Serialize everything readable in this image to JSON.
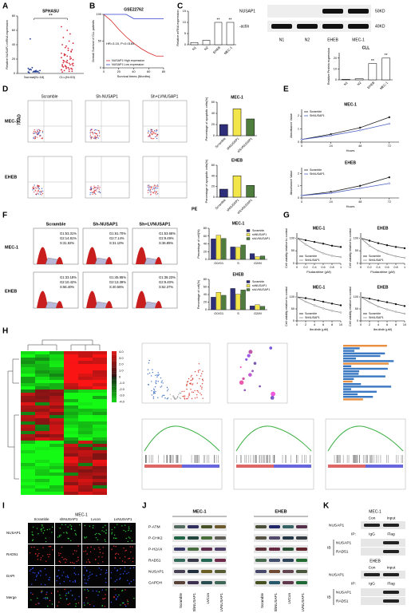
{
  "chart_data": [
    {
      "type": "strip",
      "title": "SPHASU",
      "ylabel": "Relative NUSAP1 mRNA expression",
      "categories": [
        "Normal(N=18)",
        "CLL(N=53)"
      ],
      "values": [
        [
          2,
          3,
          1,
          4,
          6,
          2,
          5,
          3,
          8,
          1,
          2,
          4,
          3,
          7,
          2,
          5,
          3,
          48
        ],
        [
          5,
          8,
          12,
          3,
          15,
          20,
          25,
          30,
          10,
          6,
          9,
          14,
          18,
          22,
          35,
          40,
          45,
          50,
          55,
          4,
          7,
          11,
          13,
          16,
          19,
          24,
          28,
          32,
          2,
          6,
          9,
          12,
          17,
          21,
          26,
          33,
          38,
          42,
          60,
          5,
          8,
          10,
          14,
          18,
          23,
          27,
          31,
          36,
          3,
          7,
          11,
          15,
          65
        ]
      ],
      "colors": [
        "#1f3a93",
        "#d62839"
      ],
      "ylim": [
        0,
        80
      ],
      "yticks": [
        0,
        20,
        40,
        60,
        80
      ],
      "annotation": "**"
    },
    {
      "type": "line",
      "title": "GSE22762",
      "ylabel": "Overall Survival of CLL patients",
      "xlabel": "Survival times (Months)",
      "x": [
        0,
        10,
        20,
        30,
        40,
        50,
        60,
        70,
        80
      ],
      "series": [
        {
          "name": "NUSAP1 High expression",
          "color": "#d62728",
          "values": [
            100,
            88,
            72,
            58,
            46,
            36,
            28,
            22,
            22
          ]
        },
        {
          "name": "NUSAP1 Low expression",
          "color": "#3344cc",
          "values": [
            100,
            100,
            100,
            100,
            92,
            92,
            92,
            92,
            92
          ]
        }
      ],
      "xlim": [
        0,
        80
      ],
      "xticks": [
        0,
        20,
        40,
        60,
        80
      ],
      "ylim": [
        0,
        100
      ],
      "yticks": [
        0,
        50,
        100
      ],
      "legend": "lower left",
      "annotation": "HR=3.15, P=0.0184"
    },
    {
      "type": "bar",
      "ylabel": "Relative mRNA expression",
      "categories": [
        "N1",
        "N2",
        "EHEB",
        "MEC-1"
      ],
      "values": [
        1,
        2,
        10,
        10
      ],
      "colors": [
        "#ffffff",
        "#ffffff",
        "#ffffff",
        "#ffffff"
      ],
      "ylim": [
        0,
        15
      ],
      "yticks": [
        0,
        5,
        10,
        15
      ],
      "significance": [
        null,
        null,
        "**",
        "**"
      ]
    },
    {
      "type": "bar",
      "title": "CLL",
      "ylabel": "Relative Protein expression",
      "categories": [
        "N1",
        "N2",
        "EHEB",
        "MEC-1"
      ],
      "values": [
        0.5,
        1,
        15,
        20
      ],
      "colors": [
        "#ffffff",
        "#ffffff",
        "#ffffff",
        "#ffffff"
      ],
      "ylim": [
        0,
        25
      ],
      "yticks": [
        0,
        10,
        20
      ],
      "significance": [
        null,
        null,
        "**",
        "**"
      ]
    },
    {
      "type": "bar",
      "title": "MEC-1",
      "ylabel": "Percentage of apoptotic cells(%)",
      "categories": [
        "Scramble",
        "shNUSAP1",
        "shLVNUSAP1"
      ],
      "values": [
        20,
        48,
        30
      ],
      "colors": [
        "#2e2e7a",
        "#f2e64a",
        "#4e7d3e"
      ],
      "ylim": [
        0,
        60
      ],
      "yticks": [
        0,
        20,
        40,
        60
      ]
    },
    {
      "type": "bar",
      "title": "EHEB",
      "ylabel": "Percentage of apoptotic cells(%)",
      "categories": [
        "Scramble",
        "shNUSAP1",
        "shLVNUSAP1"
      ],
      "values": [
        15,
        40,
        22
      ],
      "colors": [
        "#2e2e7a",
        "#f2e64a",
        "#4e7d3e"
      ],
      "ylim": [
        0,
        60
      ],
      "yticks": [
        0,
        20,
        40,
        60
      ]
    },
    {
      "type": "line",
      "title": "MEC-1",
      "ylabel": "Absorbance Value",
      "xlabel": "Hours",
      "x": [
        0,
        24,
        48,
        72
      ],
      "series": [
        {
          "name": "Scramble",
          "color": "#222222",
          "values": [
            0.2,
            0.6,
            1.1,
            1.9
          ]
        },
        {
          "name": "ShNUSAP1",
          "color": "#4a5fc1",
          "values": [
            0.2,
            0.5,
            0.9,
            1.4
          ]
        }
      ],
      "xlim": [
        0,
        80
      ],
      "xticks": [
        0,
        24,
        48,
        72
      ],
      "ylim": [
        0,
        2.5
      ],
      "yticks": [
        0,
        1,
        2
      ],
      "markers": true,
      "legend": "upper left"
    },
    {
      "type": "line",
      "title": "EHEB",
      "ylabel": "Absorbance Value",
      "xlabel": "Hours",
      "x": [
        0,
        24,
        48,
        72
      ],
      "series": [
        {
          "name": "Scramble",
          "color": "#222222",
          "values": [
            0.2,
            0.5,
            1.0,
            1.7
          ]
        },
        {
          "name": "ShNUSAP1",
          "color": "#4a5fc1",
          "values": [
            0.2,
            0.4,
            0.8,
            1.2
          ]
        }
      ],
      "xlim": [
        0,
        80
      ],
      "xticks": [
        0,
        24,
        48,
        72
      ],
      "ylim": [
        0,
        2.5
      ],
      "yticks": [
        0,
        1,
        2
      ],
      "markers": true,
      "legend": "upper left"
    },
    {
      "type": "bar",
      "title": "MEC-1",
      "ylabel": "Percentage of cell(%)",
      "categories": [
        "G0/G1",
        "S",
        "G2/M"
      ],
      "series": [
        {
          "name": "Scramble",
          "color": "#2e2e7a",
          "values": [
            53,
            32,
            15
          ]
        },
        {
          "name": "shNUSAP1",
          "color": "#f2e64a",
          "values": [
            62,
            31,
            7
          ]
        },
        {
          "name": "shLVNUSAP1",
          "color": "#4e7d3e",
          "values": [
            54,
            37,
            9
          ]
        }
      ],
      "ylim": [
        0,
        80
      ],
      "yticks": [
        0,
        20,
        40,
        60,
        80
      ],
      "legend": "upper right"
    },
    {
      "type": "bar",
      "title": "EHEB",
      "ylabel": "Percentage of cell(%)",
      "categories": [
        "G0/G1",
        "S",
        "G2/M"
      ],
      "series": [
        {
          "name": "Scramble",
          "color": "#2e2e7a",
          "values": [
            33,
            56,
            10
          ]
        },
        {
          "name": "shNUSAP1",
          "color": "#f2e64a",
          "values": [
            46,
            41,
            13
          ]
        },
        {
          "name": "shLVNUSAP1",
          "color": "#4e7d3e",
          "values": [
            38,
            52,
            9
          ]
        }
      ],
      "ylim": [
        0,
        80
      ],
      "yticks": [
        0,
        20,
        40,
        60,
        80
      ],
      "legend": "upper right"
    },
    {
      "type": "line",
      "title": "MEC-1",
      "ylabel": "Cell viability relative to control",
      "xlabel": "Fludarabine (μM)",
      "x": [
        0,
        0.2,
        0.4,
        0.6,
        0.8,
        1
      ],
      "series": [
        {
          "name": "Scramble",
          "color": "#111111",
          "values": [
            100,
            92,
            85,
            78,
            70,
            65
          ]
        },
        {
          "name": "ShNUSAP1",
          "color": "#888888",
          "values": [
            100,
            75,
            55,
            40,
            30,
            25
          ]
        }
      ],
      "xlim": [
        0,
        1
      ],
      "xticks": [
        0,
        0.2,
        0.4,
        0.6,
        0.8,
        1
      ],
      "ylim": [
        0,
        120
      ],
      "yticks": [
        0,
        50,
        100
      ],
      "markers": true,
      "legend": "lower left"
    },
    {
      "type": "line",
      "title": "EHEB",
      "ylabel": "Cell viability relative to control",
      "xlabel": "Fludarabine (μM)",
      "x": [
        0,
        0.2,
        0.4,
        0.6,
        0.8,
        1
      ],
      "series": [
        {
          "name": "Scramble",
          "color": "#111111",
          "values": [
            100,
            90,
            80,
            72,
            65,
            60
          ]
        },
        {
          "name": "ShNUSAP1",
          "color": "#888888",
          "values": [
            100,
            70,
            50,
            38,
            28,
            22
          ]
        }
      ],
      "xlim": [
        0,
        1
      ],
      "xticks": [
        0,
        0.2,
        0.4,
        0.6,
        0.8,
        1
      ],
      "ylim": [
        0,
        120
      ],
      "yticks": [
        0,
        50,
        100
      ],
      "markers": true,
      "legend": "lower left"
    },
    {
      "type": "line",
      "title": "MEC-1",
      "ylabel": "Cell viability relative to control",
      "xlabel": "Ibrutinib (μM)",
      "x": [
        0,
        2,
        4,
        6,
        8,
        10
      ],
      "series": [
        {
          "name": "Scramble",
          "color": "#111111",
          "values": [
            100,
            95,
            88,
            80,
            72,
            65
          ]
        },
        {
          "name": "ShNUSAP1",
          "color": "#888888",
          "values": [
            100,
            80,
            65,
            52,
            42,
            35
          ]
        }
      ],
      "xlim": [
        0,
        10
      ],
      "xticks": [
        0,
        2,
        4,
        6,
        8,
        10
      ],
      "ylim": [
        0,
        120
      ],
      "yticks": [
        0,
        50,
        100
      ],
      "markers": true,
      "legend": "lower left"
    },
    {
      "type": "line",
      "title": "EHEB",
      "ylabel": "Cell viability relative to control",
      "xlabel": "Ibrutinib (μM)",
      "x": [
        0,
        2,
        4,
        6,
        8,
        10
      ],
      "series": [
        {
          "name": "Scramble",
          "color": "#111111",
          "values": [
            100,
            93,
            85,
            78,
            70,
            62
          ]
        },
        {
          "name": "ShNUSAP1",
          "color": "#888888",
          "values": [
            100,
            78,
            60,
            48,
            38,
            30
          ]
        }
      ],
      "xlim": [
        0,
        10
      ],
      "xticks": [
        0,
        2,
        4,
        6,
        8,
        10
      ],
      "ylim": [
        0,
        120
      ],
      "yticks": [
        0,
        50,
        100
      ],
      "markers": true,
      "legend": "lower left"
    }
  ],
  "figure": {
    "panels": [
      "A",
      "B",
      "C",
      "D",
      "E",
      "F",
      "G",
      "H",
      "I",
      "J",
      "K"
    ],
    "c_blot": {
      "proteins": [
        "NUSAP1",
        "-actin"
      ],
      "sizes": [
        "50KD",
        "40KD"
      ],
      "lanes": [
        "N1",
        "N2",
        "EHEB",
        "MEC-1"
      ]
    },
    "d_flow": {
      "columns": [
        "Scramble",
        "Sh-NUSAP1",
        "Sh+LVNUSAP1"
      ],
      "rows": [
        "MEC-1",
        "EHEB"
      ],
      "y_label": "7AAD",
      "x_label": "PE"
    },
    "f_cycle": {
      "columns": [
        "Scramble",
        "Sh-NUSAP1",
        "Sh+LVNUSAP1"
      ],
      "rows": [
        "MEC-1",
        "EHEB"
      ],
      "stats": [
        [
          [
            "G1:53.31%",
            "G2:14.81%",
            "S:31.92%"
          ],
          [
            "G1:61.70%",
            "G2:7.14%",
            "S:31.10%"
          ],
          [
            "G1:53.66%",
            "G2:9.49%",
            "S:36.85%"
          ]
        ],
        [
          [
            "G1:33.18%",
            "G2:10.42%",
            "S:56.40%"
          ],
          [
            "G1:45.95%",
            "G2:13.39%",
            "S:40.55%"
          ],
          [
            "G1:38.23%",
            "G2:9.40%",
            "S:52.37%"
          ]
        ]
      ]
    },
    "h_heatmap": {
      "scale": [
        "4.0",
        "3.0",
        "2.0",
        "1.0",
        "0",
        "-1.0",
        "-2.0",
        "-3.0",
        "-4.0"
      ]
    },
    "i_if": {
      "title": "MEC-1",
      "columns": [
        "Scramble",
        "shNUSAP1",
        "Lvcon",
        "LvNUSAP1"
      ],
      "rows": [
        "NUSAP1",
        "RAD51",
        "DAPI",
        "Merge"
      ]
    },
    "j_blot": {
      "groups": [
        "MEC-1",
        "EHEB"
      ],
      "proteins": [
        "P-ATM",
        "P-CHK2",
        "P-H2AX",
        "RAD51",
        "NUSAP1",
        "GAPDH"
      ],
      "lanes": [
        "Scramble",
        "ShNUSAP1",
        "LVCon",
        "LVNUSAP1"
      ]
    },
    "k_ip": [
      {
        "title": "MEC-1",
        "columns": [
          "Con",
          "Input"
        ],
        "ip_label": "IP:",
        "ip_lanes": [
          "IgG",
          "Flag"
        ],
        "ib_label": "IB",
        "input_protein": "NUSAP1",
        "ib_proteins": [
          "NUSAP1",
          "RAD51"
        ]
      },
      {
        "title": "EHEB",
        "columns": [
          "Con",
          "Input"
        ],
        "ip_label": "IP:",
        "ip_lanes": [
          "IgG",
          "Flag"
        ],
        "ib_label": "IB",
        "input_protein": "NUSAP1",
        "ib_proteins": [
          "NUSAP1",
          "RAD51"
        ]
      }
    ]
  }
}
